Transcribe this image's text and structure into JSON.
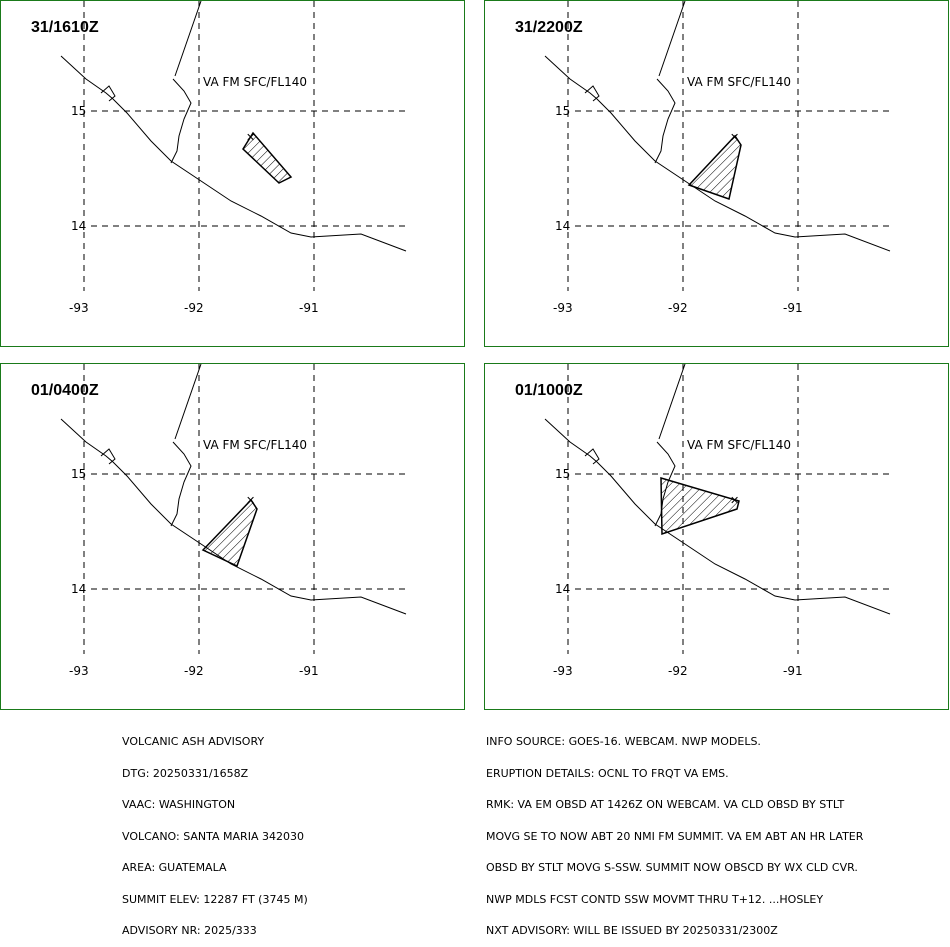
{
  "map": {
    "lon_ticks": [
      "-93",
      "-92",
      "-91"
    ],
    "lat_ticks": [
      "15",
      "14"
    ],
    "va_label": "VA FM SFC/FL140",
    "colors": {
      "border": "#1a7a1a",
      "lines": "#000000"
    }
  },
  "panels": [
    {
      "title": "31/1610Z"
    },
    {
      "title": "31/2200Z"
    },
    {
      "title": "01/0400Z"
    },
    {
      "title": "01/1000Z"
    }
  ],
  "advisory_left": [
    "VOLCANIC ASH ADVISORY",
    "DTG: 20250331/1658Z",
    "VAAC: WASHINGTON",
    "VOLCANO: SANTA MARIA 342030",
    "AREA: GUATEMALA",
    "SUMMIT ELEV: 12287 FT (3745 M)",
    "ADVISORY NR: 2025/333"
  ],
  "advisory_right": [
    "INFO SOURCE: GOES-16. WEBCAM. NWP MODELS.",
    "ERUPTION DETAILS: OCNL TO FRQT VA EMS.",
    "RMK: VA EM OBSD AT 1426Z ON WEBCAM. VA CLD OBSD BY STLT",
    "MOVG SE TO NOW ABT 20 NMI FM SUMMIT. VA EM ABT AN HR LATER",
    "OBSD BY STLT MOVG S-SSW. SUMMIT NOW OBSCD BY WX CLD CVR.",
    "NWP MDLS FCST CONTD SSW MOVMT THRU T+12. ...HOSLEY",
    "NXT ADVISORY: WILL BE ISSUED BY 20250331/2300Z"
  ]
}
